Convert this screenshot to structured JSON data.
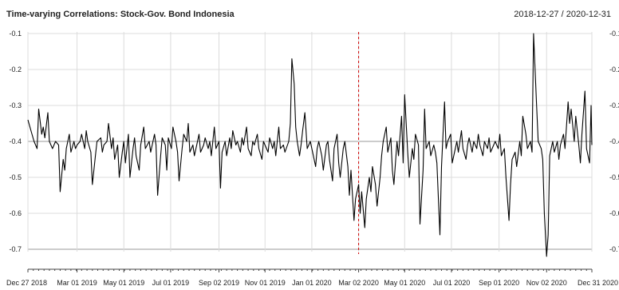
{
  "chart_data": {
    "type": "line",
    "title": "Time-varying Correlations: Stock-Gov. Bond Indonesia",
    "date_range_label": "2018-12-27 / 2020-12-31",
    "xlabel": "",
    "ylabel": "",
    "ylim": [
      -0.72,
      -0.1
    ],
    "xlim": [
      "2018-12-27",
      "2020-12-31"
    ],
    "grid": true,
    "y_ticks": [
      -0.1,
      -0.2,
      -0.3,
      -0.4,
      -0.5,
      -0.6,
      -0.7
    ],
    "y_tick_labels": [
      "-0.1",
      "-0.2",
      "-0.3",
      "-0.4",
      "-0.5",
      "-0.6",
      "-0.7"
    ],
    "x_ticks": [
      {
        "date": "2018-12-27",
        "label": "Dec 27 2018"
      },
      {
        "date": "2019-03-01",
        "label": "Mar 01 2019"
      },
      {
        "date": "2019-05-01",
        "label": "May 01 2019"
      },
      {
        "date": "2019-07-01",
        "label": "Jul 01 2019"
      },
      {
        "date": "2019-09-02",
        "label": "Sep 02 2019"
      },
      {
        "date": "2019-11-01",
        "label": "Nov 01 2019"
      },
      {
        "date": "2020-01-01",
        "label": "Jan 01 2020"
      },
      {
        "date": "2020-03-02",
        "label": "Mar 02 2020"
      },
      {
        "date": "2020-05-01",
        "label": "May 01 2020"
      },
      {
        "date": "2020-07-01",
        "label": "Jul 01 2020"
      },
      {
        "date": "2020-09-01",
        "label": "Sep 01 2020"
      },
      {
        "date": "2020-11-02",
        "label": "Nov 02 2020"
      },
      {
        "date": "2020-12-31",
        "label": "Dec 31 2020"
      }
    ],
    "event_line": {
      "date": "2020-03-02",
      "color": "#d00000"
    },
    "series": [
      {
        "color": "#000000",
        "points": [
          [
            "2018-12-27",
            -0.34
          ],
          [
            "2018-12-31",
            -0.37
          ],
          [
            "2019-01-04",
            -0.4
          ],
          [
            "2019-01-08",
            -0.42
          ],
          [
            "2019-01-10",
            -0.31
          ],
          [
            "2019-01-14",
            -0.38
          ],
          [
            "2019-01-16",
            -0.36
          ],
          [
            "2019-01-18",
            -0.39
          ],
          [
            "2019-01-22",
            -0.32
          ],
          [
            "2019-01-24",
            -0.4
          ],
          [
            "2019-01-28",
            -0.42
          ],
          [
            "2019-02-01",
            -0.4
          ],
          [
            "2019-02-05",
            -0.41
          ],
          [
            "2019-02-07",
            -0.54
          ],
          [
            "2019-02-11",
            -0.45
          ],
          [
            "2019-02-13",
            -0.48
          ],
          [
            "2019-02-15",
            -0.42
          ],
          [
            "2019-02-19",
            -0.38
          ],
          [
            "2019-02-21",
            -0.43
          ],
          [
            "2019-02-25",
            -0.4
          ],
          [
            "2019-02-27",
            -0.42
          ],
          [
            "2019-03-01",
            -0.41
          ],
          [
            "2019-03-05",
            -0.4
          ],
          [
            "2019-03-07",
            -0.38
          ],
          [
            "2019-03-11",
            -0.42
          ],
          [
            "2019-03-13",
            -0.37
          ],
          [
            "2019-03-15",
            -0.4
          ],
          [
            "2019-03-19",
            -0.43
          ],
          [
            "2019-03-21",
            -0.52
          ],
          [
            "2019-03-25",
            -0.44
          ],
          [
            "2019-03-27",
            -0.4
          ],
          [
            "2019-04-01",
            -0.39
          ],
          [
            "2019-04-03",
            -0.43
          ],
          [
            "2019-04-05",
            -0.41
          ],
          [
            "2019-04-09",
            -0.4
          ],
          [
            "2019-04-11",
            -0.35
          ],
          [
            "2019-04-15",
            -0.42
          ],
          [
            "2019-04-17",
            -0.39
          ],
          [
            "2019-04-19",
            -0.45
          ],
          [
            "2019-04-23",
            -0.41
          ],
          [
            "2019-04-25",
            -0.5
          ],
          [
            "2019-04-29",
            -0.43
          ],
          [
            "2019-05-01",
            -0.4
          ],
          [
            "2019-05-03",
            -0.46
          ],
          [
            "2019-05-07",
            -0.38
          ],
          [
            "2019-05-09",
            -0.5
          ],
          [
            "2019-05-13",
            -0.42
          ],
          [
            "2019-05-15",
            -0.39
          ],
          [
            "2019-05-17",
            -0.44
          ],
          [
            "2019-05-21",
            -0.48
          ],
          [
            "2019-05-23",
            -0.41
          ],
          [
            "2019-05-27",
            -0.36
          ],
          [
            "2019-05-29",
            -0.42
          ],
          [
            "2019-06-03",
            -0.4
          ],
          [
            "2019-06-05",
            -0.43
          ],
          [
            "2019-06-10",
            -0.38
          ],
          [
            "2019-06-12",
            -0.41
          ],
          [
            "2019-06-14",
            -0.55
          ],
          [
            "2019-06-18",
            -0.44
          ],
          [
            "2019-06-20",
            -0.39
          ],
          [
            "2019-06-24",
            -0.41
          ],
          [
            "2019-06-26",
            -0.48
          ],
          [
            "2019-06-28",
            -0.39
          ],
          [
            "2019-07-02",
            -0.42
          ],
          [
            "2019-07-04",
            -0.36
          ],
          [
            "2019-07-08",
            -0.4
          ],
          [
            "2019-07-10",
            -0.43
          ],
          [
            "2019-07-12",
            -0.51
          ],
          [
            "2019-07-16",
            -0.42
          ],
          [
            "2019-07-18",
            -0.38
          ],
          [
            "2019-07-22",
            -0.4
          ],
          [
            "2019-07-24",
            -0.35
          ],
          [
            "2019-07-26",
            -0.43
          ],
          [
            "2019-07-30",
            -0.41
          ],
          [
            "2019-08-01",
            -0.44
          ],
          [
            "2019-08-05",
            -0.4
          ],
          [
            "2019-08-07",
            -0.38
          ],
          [
            "2019-08-09",
            -0.43
          ],
          [
            "2019-08-13",
            -0.41
          ],
          [
            "2019-08-15",
            -0.39
          ],
          [
            "2019-08-19",
            -0.42
          ],
          [
            "2019-08-21",
            -0.4
          ],
          [
            "2019-08-23",
            -0.44
          ],
          [
            "2019-08-27",
            -0.36
          ],
          [
            "2019-08-29",
            -0.42
          ],
          [
            "2019-09-02",
            -0.4
          ],
          [
            "2019-09-04",
            -0.53
          ],
          [
            "2019-09-06",
            -0.43
          ],
          [
            "2019-09-10",
            -0.4
          ],
          [
            "2019-09-12",
            -0.44
          ],
          [
            "2019-09-16",
            -0.39
          ],
          [
            "2019-09-18",
            -0.42
          ],
          [
            "2019-09-20",
            -0.37
          ],
          [
            "2019-09-24",
            -0.41
          ],
          [
            "2019-09-26",
            -0.4
          ],
          [
            "2019-09-30",
            -0.43
          ],
          [
            "2019-10-02",
            -0.39
          ],
          [
            "2019-10-04",
            -0.41
          ],
          [
            "2019-10-08",
            -0.36
          ],
          [
            "2019-10-10",
            -0.42
          ],
          [
            "2019-10-14",
            -0.44
          ],
          [
            "2019-10-16",
            -0.4
          ],
          [
            "2019-10-18",
            -0.41
          ],
          [
            "2019-10-22",
            -0.38
          ],
          [
            "2019-10-24",
            -0.42
          ],
          [
            "2019-10-28",
            -0.45
          ],
          [
            "2019-10-30",
            -0.4
          ],
          [
            "2019-11-01",
            -0.41
          ],
          [
            "2019-11-05",
            -0.43
          ],
          [
            "2019-11-07",
            -0.39
          ],
          [
            "2019-11-11",
            -0.42
          ],
          [
            "2019-11-13",
            -0.4
          ],
          [
            "2019-11-15",
            -0.44
          ],
          [
            "2019-11-19",
            -0.36
          ],
          [
            "2019-11-21",
            -0.42
          ],
          [
            "2019-11-25",
            -0.41
          ],
          [
            "2019-11-27",
            -0.43
          ],
          [
            "2019-12-02",
            -0.4
          ],
          [
            "2019-12-04",
            -0.35
          ],
          [
            "2019-12-06",
            -0.17
          ],
          [
            "2019-12-09",
            -0.24
          ],
          [
            "2019-12-11",
            -0.36
          ],
          [
            "2019-12-13",
            -0.4
          ],
          [
            "2019-12-16",
            -0.44
          ],
          [
            "2019-12-18",
            -0.41
          ],
          [
            "2019-12-20",
            -0.37
          ],
          [
            "2019-12-23",
            -0.32
          ],
          [
            "2019-12-26",
            -0.42
          ],
          [
            "2019-12-30",
            -0.4
          ],
          [
            "2020-01-02",
            -0.43
          ],
          [
            "2020-01-06",
            -0.47
          ],
          [
            "2020-01-08",
            -0.42
          ],
          [
            "2020-01-10",
            -0.4
          ],
          [
            "2020-01-14",
            -0.44
          ],
          [
            "2020-01-16",
            -0.48
          ],
          [
            "2020-01-20",
            -0.41
          ],
          [
            "2020-01-22",
            -0.4
          ],
          [
            "2020-01-24",
            -0.45
          ],
          [
            "2020-01-28",
            -0.51
          ],
          [
            "2020-01-30",
            -0.42
          ],
          [
            "2020-02-03",
            -0.38
          ],
          [
            "2020-02-05",
            -0.46
          ],
          [
            "2020-02-07",
            -0.5
          ],
          [
            "2020-02-11",
            -0.42
          ],
          [
            "2020-02-13",
            -0.4
          ],
          [
            "2020-02-17",
            -0.47
          ],
          [
            "2020-02-19",
            -0.55
          ],
          [
            "2020-02-21",
            -0.48
          ],
          [
            "2020-02-25",
            -0.62
          ],
          [
            "2020-02-27",
            -0.56
          ],
          [
            "2020-03-02",
            -0.52
          ],
          [
            "2020-03-04",
            -0.6
          ],
          [
            "2020-03-06",
            -0.54
          ],
          [
            "2020-03-10",
            -0.64
          ],
          [
            "2020-03-12",
            -0.56
          ],
          [
            "2020-03-16",
            -0.5
          ],
          [
            "2020-03-18",
            -0.54
          ],
          [
            "2020-03-20",
            -0.47
          ],
          [
            "2020-03-24",
            -0.52
          ],
          [
            "2020-03-26",
            -0.58
          ],
          [
            "2020-03-30",
            -0.5
          ],
          [
            "2020-04-01",
            -0.44
          ],
          [
            "2020-04-03",
            -0.4
          ],
          [
            "2020-04-07",
            -0.36
          ],
          [
            "2020-04-09",
            -0.43
          ],
          [
            "2020-04-13",
            -0.39
          ],
          [
            "2020-04-15",
            -0.48
          ],
          [
            "2020-04-17",
            -0.52
          ],
          [
            "2020-04-21",
            -0.4
          ],
          [
            "2020-04-23",
            -0.44
          ],
          [
            "2020-04-27",
            -0.33
          ],
          [
            "2020-04-29",
            -0.46
          ],
          [
            "2020-05-01",
            -0.27
          ],
          [
            "2020-05-05",
            -0.43
          ],
          [
            "2020-05-07",
            -0.5
          ],
          [
            "2020-05-11",
            -0.42
          ],
          [
            "2020-05-13",
            -0.45
          ],
          [
            "2020-05-15",
            -0.38
          ],
          [
            "2020-05-19",
            -0.41
          ],
          [
            "2020-05-21",
            -0.63
          ],
          [
            "2020-05-25",
            -0.48
          ],
          [
            "2020-05-27",
            -0.31
          ],
          [
            "2020-05-29",
            -0.42
          ],
          [
            "2020-06-02",
            -0.4
          ],
          [
            "2020-06-04",
            -0.44
          ],
          [
            "2020-06-08",
            -0.41
          ],
          [
            "2020-06-10",
            -0.43
          ],
          [
            "2020-06-12",
            -0.46
          ],
          [
            "2020-06-16",
            -0.66
          ],
          [
            "2020-06-18",
            -0.47
          ],
          [
            "2020-06-22",
            -0.29
          ],
          [
            "2020-06-24",
            -0.42
          ],
          [
            "2020-06-26",
            -0.4
          ],
          [
            "2020-06-30",
            -0.38
          ],
          [
            "2020-07-02",
            -0.46
          ],
          [
            "2020-07-06",
            -0.42
          ],
          [
            "2020-07-08",
            -0.4
          ],
          [
            "2020-07-10",
            -0.43
          ],
          [
            "2020-07-14",
            -0.37
          ],
          [
            "2020-07-16",
            -0.42
          ],
          [
            "2020-07-20",
            -0.45
          ],
          [
            "2020-07-22",
            -0.41
          ],
          [
            "2020-07-24",
            -0.39
          ],
          [
            "2020-07-28",
            -0.43
          ],
          [
            "2020-07-30",
            -0.4
          ],
          [
            "2020-08-03",
            -0.42
          ],
          [
            "2020-08-05",
            -0.38
          ],
          [
            "2020-08-07",
            -0.41
          ],
          [
            "2020-08-11",
            -0.44
          ],
          [
            "2020-08-13",
            -0.4
          ],
          [
            "2020-08-17",
            -0.42
          ],
          [
            "2020-08-19",
            -0.39
          ],
          [
            "2020-08-21",
            -0.43
          ],
          [
            "2020-08-25",
            -0.41
          ],
          [
            "2020-08-27",
            -0.4
          ],
          [
            "2020-08-31",
            -0.42
          ],
          [
            "2020-09-02",
            -0.38
          ],
          [
            "2020-09-04",
            -0.44
          ],
          [
            "2020-09-08",
            -0.42
          ],
          [
            "2020-09-10",
            -0.5
          ],
          [
            "2020-09-14",
            -0.62
          ],
          [
            "2020-09-16",
            -0.52
          ],
          [
            "2020-09-18",
            -0.45
          ],
          [
            "2020-09-22",
            -0.43
          ],
          [
            "2020-09-24",
            -0.47
          ],
          [
            "2020-09-28",
            -0.4
          ],
          [
            "2020-09-30",
            -0.44
          ],
          [
            "2020-10-02",
            -0.33
          ],
          [
            "2020-10-06",
            -0.38
          ],
          [
            "2020-10-08",
            -0.42
          ],
          [
            "2020-10-12",
            -0.4
          ],
          [
            "2020-10-14",
            -0.43
          ],
          [
            "2020-10-16",
            -0.1
          ],
          [
            "2020-10-20",
            -0.3
          ],
          [
            "2020-10-22",
            -0.4
          ],
          [
            "2020-10-26",
            -0.42
          ],
          [
            "2020-10-28",
            -0.45
          ],
          [
            "2020-10-30",
            -0.6
          ],
          [
            "2020-11-02",
            -0.72
          ],
          [
            "2020-11-04",
            -0.66
          ],
          [
            "2020-11-06",
            -0.44
          ],
          [
            "2020-11-10",
            -0.4
          ],
          [
            "2020-11-12",
            -0.43
          ],
          [
            "2020-11-16",
            -0.4
          ],
          [
            "2020-11-18",
            -0.45
          ],
          [
            "2020-11-20",
            -0.41
          ],
          [
            "2020-11-24",
            -0.38
          ],
          [
            "2020-11-26",
            -0.42
          ],
          [
            "2020-11-30",
            -0.29
          ],
          [
            "2020-12-02",
            -0.35
          ],
          [
            "2020-12-04",
            -0.31
          ],
          [
            "2020-12-08",
            -0.4
          ],
          [
            "2020-12-10",
            -0.33
          ],
          [
            "2020-12-14",
            -0.41
          ],
          [
            "2020-12-16",
            -0.46
          ],
          [
            "2020-12-18",
            -0.38
          ],
          [
            "2020-12-22",
            -0.26
          ],
          [
            "2020-12-24",
            -0.42
          ],
          [
            "2020-12-28",
            -0.46
          ],
          [
            "2020-12-30",
            -0.3
          ],
          [
            "2020-12-31",
            -0.41
          ]
        ]
      }
    ]
  }
}
